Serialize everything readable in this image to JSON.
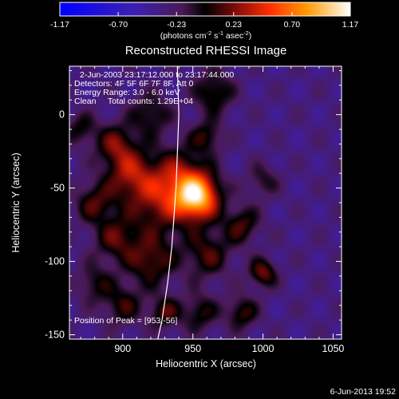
{
  "chart_data": {
    "type": "heatmap",
    "title": "Reconstructed RHESSI Image",
    "xlabel": "Heliocentric X (arcsec)",
    "ylabel": "Heliocentric Y (arcsec)",
    "xlim": [
      862,
      1056
    ],
    "ylim": [
      -153,
      33
    ],
    "x_ticks": [
      900,
      950,
      1000,
      1050
    ],
    "y_ticks": [
      0,
      -50,
      -100,
      -150
    ],
    "colorbar": {
      "min": -1.17,
      "max": 1.17,
      "ticks": [
        "-1.17",
        "-0.70",
        "-0.23",
        "0.23",
        "0.70",
        "1.17"
      ],
      "label_parts": [
        "(photons cm",
        "-2",
        " s",
        "-1",
        " asec",
        "-2",
        ")"
      ],
      "stops": [
        {
          "v": 0.0,
          "c": "#0000ff"
        },
        {
          "v": 0.25,
          "c": "#3c1fb4"
        },
        {
          "v": 0.42,
          "c": "#4a1a56"
        },
        {
          "v": 0.5,
          "c": "#000000"
        },
        {
          "v": 0.6,
          "c": "#7a0a0a"
        },
        {
          "v": 0.72,
          "c": "#ff2d00"
        },
        {
          "v": 0.85,
          "c": "#ff9a00"
        },
        {
          "v": 1.0,
          "c": "#ffffff"
        }
      ]
    },
    "annotations": [
      "2-Jun-2003 23:17:12.000 to 23:17:44.000",
      "Detectors: 4F 5F 6F 7F 8F, Att 0",
      "Energy Range: 3.0 - 6.0 keV",
      "Clean     Total counts: 1.29E+04"
    ],
    "peak_label": "Position of Peak = [953,-56]",
    "peak": {
      "x": 953,
      "y": -56,
      "value": 1.17
    },
    "sources": [
      {
        "x": 953,
        "y": -56,
        "amp": 1.25,
        "sigma": 11
      },
      {
        "x": 940,
        "y": -40,
        "amp": 0.45,
        "sigma": 14
      },
      {
        "x": 925,
        "y": -60,
        "amp": 0.55,
        "sigma": 16
      },
      {
        "x": 905,
        "y": -40,
        "amp": 0.55,
        "sigma": 12
      },
      {
        "x": 895,
        "y": -20,
        "amp": 0.5,
        "sigma": 10
      },
      {
        "x": 880,
        "y": -60,
        "amp": 0.45,
        "sigma": 10
      },
      {
        "x": 895,
        "y": -85,
        "amp": 0.45,
        "sigma": 11
      },
      {
        "x": 920,
        "y": -100,
        "amp": 0.5,
        "sigma": 12
      },
      {
        "x": 960,
        "y": -95,
        "amp": 0.45,
        "sigma": 12
      },
      {
        "x": 985,
        "y": -75,
        "amp": 0.45,
        "sigma": 9
      },
      {
        "x": 1000,
        "y": -108,
        "amp": 0.55,
        "sigma": 7
      },
      {
        "x": 985,
        "y": -135,
        "amp": 0.45,
        "sigma": 8
      },
      {
        "x": 955,
        "y": -135,
        "amp": 0.4,
        "sigma": 9
      },
      {
        "x": 930,
        "y": -135,
        "amp": 0.45,
        "sigma": 8
      },
      {
        "x": 900,
        "y": -130,
        "amp": 0.4,
        "sigma": 10
      },
      {
        "x": 880,
        "y": -115,
        "amp": 0.35,
        "sigma": 9
      },
      {
        "x": 965,
        "y": 15,
        "amp": 0.45,
        "sigma": 10
      },
      {
        "x": 960,
        "y": -15,
        "amp": 0.4,
        "sigma": 8
      },
      {
        "x": 920,
        "y": 0,
        "amp": 0.4,
        "sigma": 10
      },
      {
        "x": 870,
        "y": -10,
        "amp": 0.35,
        "sigma": 8
      },
      {
        "x": 1000,
        "y": -45,
        "amp": 0.3,
        "sigma": 8
      }
    ],
    "background": -0.35,
    "limb_line": [
      [
        939,
        33
      ],
      [
        940,
        0
      ],
      [
        938,
        -50
      ],
      [
        935,
        -90
      ],
      [
        932,
        -115
      ],
      [
        928,
        -140
      ],
      [
        925,
        -153
      ]
    ],
    "date_stamp": "6-Jun-2013 19:52"
  }
}
